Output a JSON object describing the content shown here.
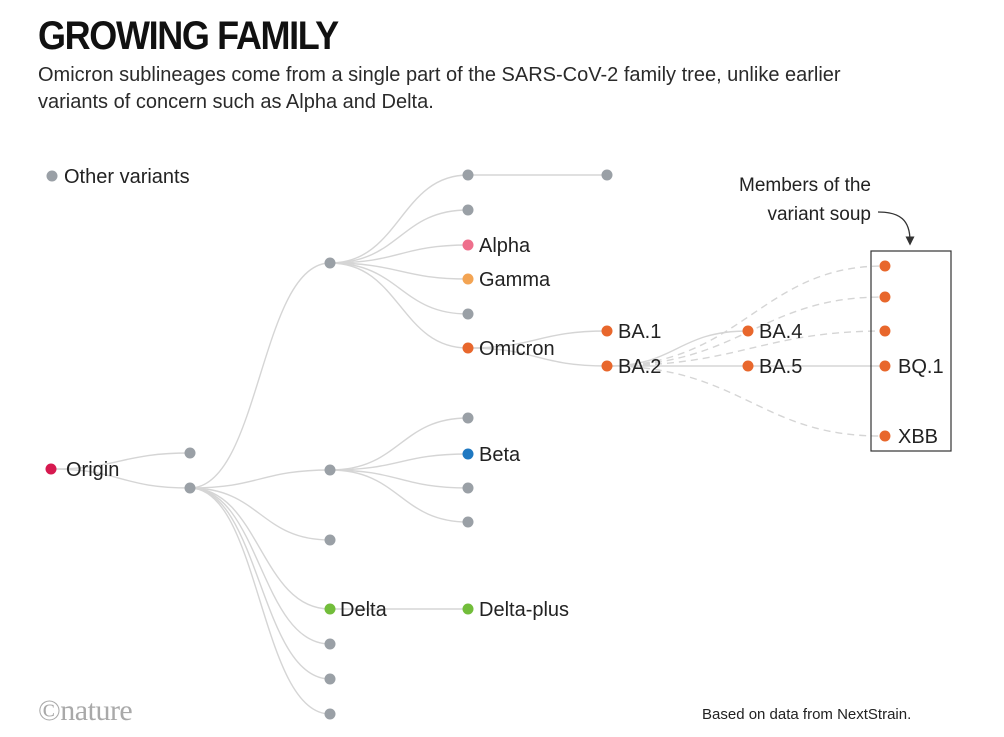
{
  "headline": "GROWING FAMILY",
  "standfirst": "Omicron sublineages come from a single part of the SARS-CoV-2 family tree, unlike earlier variants of concern such as Alpha and Delta.",
  "legend": {
    "label": "Other variants",
    "color": "#9aa0a6"
  },
  "colors": {
    "gray": "#9aa0a6",
    "origin": "#d6194f",
    "alpha": "#ee6f8c",
    "gamma": "#f3a453",
    "omicron": "#e8672c",
    "beta": "#1f78c1",
    "delta": "#72bd3a",
    "edge": "#d5d5d5"
  },
  "nodes": {
    "origin": "Origin",
    "alpha": "Alpha",
    "gamma": "Gamma",
    "omicron": "Omicron",
    "beta": "Beta",
    "delta": "Delta",
    "delta_plus": "Delta-plus",
    "ba1": "BA.1",
    "ba2": "BA.2",
    "ba4": "BA.4",
    "ba5": "BA.5",
    "bq1": "BQ.1",
    "xbb": "XBB"
  },
  "annotation": {
    "line1": "Members of the",
    "line2": "variant soup"
  },
  "credit": "©nature",
  "source": "Based on data from NextStrain."
}
